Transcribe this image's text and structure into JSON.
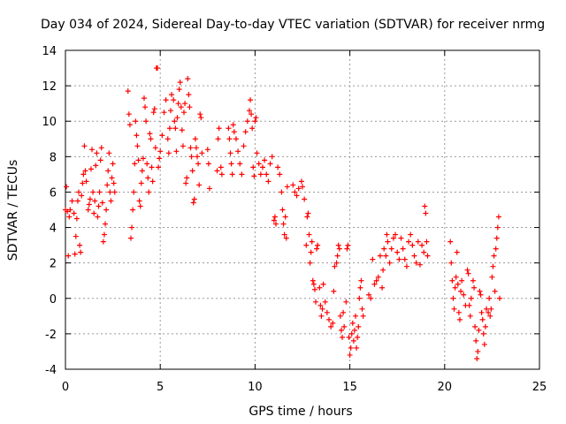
{
  "chart_data": {
    "type": "scatter",
    "title": "Day 034 of 2024, Sidereal Day-to-day VTEC variation (SDTVAR) for receiver nrmg",
    "xlabel": "GPS time / hours",
    "ylabel": "SDTVAR / TECUs",
    "xlim": [
      0,
      25
    ],
    "ylim": [
      -4,
      14
    ],
    "xticks": [
      0,
      5,
      10,
      15,
      20,
      25
    ],
    "yticks": [
      -4,
      -2,
      0,
      2,
      4,
      6,
      8,
      10,
      12,
      14
    ],
    "grid": true,
    "marker": "+",
    "color": "#ff0000",
    "series": [
      {
        "name": "SDTVAR",
        "points": [
          [
            0.0,
            5.0
          ],
          [
            0.05,
            6.3
          ],
          [
            0.1,
            4.9
          ],
          [
            0.15,
            2.4
          ],
          [
            0.2,
            4.6
          ],
          [
            0.25,
            5.0
          ],
          [
            0.35,
            5.5
          ],
          [
            0.45,
            4.8
          ],
          [
            0.5,
            2.5
          ],
          [
            0.55,
            3.5
          ],
          [
            0.6,
            4.5
          ],
          [
            0.65,
            5.5
          ],
          [
            0.7,
            6.0
          ],
          [
            0.75,
            3.0
          ],
          [
            0.8,
            2.6
          ],
          [
            0.85,
            5.8
          ],
          [
            0.9,
            6.5
          ],
          [
            0.95,
            7.0
          ],
          [
            1.0,
            8.6
          ],
          [
            1.05,
            7.2
          ],
          [
            1.1,
            6.6
          ],
          [
            1.2,
            5.0
          ],
          [
            1.25,
            5.3
          ],
          [
            1.3,
            5.6
          ],
          [
            1.35,
            7.3
          ],
          [
            1.4,
            8.4
          ],
          [
            1.45,
            6.0
          ],
          [
            1.5,
            4.8
          ],
          [
            1.55,
            5.5
          ],
          [
            1.6,
            7.5
          ],
          [
            1.65,
            8.2
          ],
          [
            1.7,
            4.6
          ],
          [
            1.75,
            5.2
          ],
          [
            1.8,
            6.0
          ],
          [
            1.85,
            7.8
          ],
          [
            1.9,
            8.5
          ],
          [
            1.95,
            5.4
          ],
          [
            2.0,
            3.2
          ],
          [
            2.05,
            3.6
          ],
          [
            2.1,
            4.2
          ],
          [
            2.15,
            5.0
          ],
          [
            2.2,
            6.4
          ],
          [
            2.25,
            7.2
          ],
          [
            2.3,
            8.2
          ],
          [
            2.35,
            6.0
          ],
          [
            2.4,
            5.5
          ],
          [
            2.45,
            6.8
          ],
          [
            2.5,
            7.6
          ],
          [
            2.55,
            6.5
          ],
          [
            2.6,
            6.0
          ],
          [
            3.3,
            11.7
          ],
          [
            3.35,
            10.4
          ],
          [
            3.4,
            9.8
          ],
          [
            3.45,
            3.4
          ],
          [
            3.5,
            4.0
          ],
          [
            3.55,
            5.0
          ],
          [
            3.6,
            6.0
          ],
          [
            3.65,
            7.6
          ],
          [
            3.7,
            10.0
          ],
          [
            3.75,
            9.2
          ],
          [
            3.8,
            8.6
          ],
          [
            3.85,
            7.8
          ],
          [
            3.9,
            5.5
          ],
          [
            3.95,
            5.2
          ],
          [
            4.0,
            6.5
          ],
          [
            4.05,
            7.2
          ],
          [
            4.1,
            7.9
          ],
          [
            4.15,
            11.3
          ],
          [
            4.2,
            10.8
          ],
          [
            4.25,
            10.0
          ],
          [
            4.3,
            7.6
          ],
          [
            4.35,
            6.8
          ],
          [
            4.4,
            6.0
          ],
          [
            4.45,
            9.3
          ],
          [
            4.5,
            9.0
          ],
          [
            4.55,
            7.4
          ],
          [
            4.6,
            6.6
          ],
          [
            4.65,
            10.5
          ],
          [
            4.7,
            10.7
          ],
          [
            4.75,
            8.5
          ],
          [
            4.8,
            13.0
          ],
          [
            4.85,
            13.0
          ],
          [
            4.9,
            7.4
          ],
          [
            4.95,
            7.9
          ],
          [
            5.0,
            8.3
          ],
          [
            5.1,
            9.2
          ],
          [
            5.2,
            10.5
          ],
          [
            5.3,
            11.2
          ],
          [
            5.4,
            9.0
          ],
          [
            5.45,
            8.2
          ],
          [
            5.5,
            9.6
          ],
          [
            5.55,
            10.6
          ],
          [
            5.6,
            11.5
          ],
          [
            5.7,
            11.2
          ],
          [
            5.75,
            10.0
          ],
          [
            5.8,
            9.6
          ],
          [
            5.85,
            8.3
          ],
          [
            5.9,
            10.2
          ],
          [
            5.95,
            11.0
          ],
          [
            6.0,
            11.8
          ],
          [
            6.05,
            12.2
          ],
          [
            6.1,
            10.8
          ],
          [
            6.15,
            9.5
          ],
          [
            6.2,
            8.6
          ],
          [
            6.25,
            10.5
          ],
          [
            6.3,
            11.0
          ],
          [
            6.35,
            6.5
          ],
          [
            6.4,
            6.8
          ],
          [
            6.45,
            12.4
          ],
          [
            6.5,
            11.5
          ],
          [
            6.55,
            10.8
          ],
          [
            6.6,
            8.5
          ],
          [
            6.65,
            8.0
          ],
          [
            6.7,
            7.2
          ],
          [
            6.75,
            5.4
          ],
          [
            6.8,
            5.6
          ],
          [
            6.85,
            9.0
          ],
          [
            6.9,
            8.5
          ],
          [
            6.95,
            8.0
          ],
          [
            7.0,
            7.6
          ],
          [
            7.05,
            6.4
          ],
          [
            7.1,
            10.4
          ],
          [
            7.15,
            10.2
          ],
          [
            7.2,
            8.2
          ],
          [
            7.5,
            8.4
          ],
          [
            7.55,
            7.6
          ],
          [
            7.6,
            6.2
          ],
          [
            8.0,
            7.2
          ],
          [
            8.05,
            9.0
          ],
          [
            8.1,
            9.6
          ],
          [
            8.2,
            7.4
          ],
          [
            8.25,
            7.0
          ],
          [
            8.6,
            9.6
          ],
          [
            8.65,
            9.0
          ],
          [
            8.7,
            8.2
          ],
          [
            8.75,
            7.6
          ],
          [
            8.8,
            7.0
          ],
          [
            8.85,
            9.8
          ],
          [
            8.9,
            9.4
          ],
          [
            9.0,
            9.0
          ],
          [
            9.1,
            8.3
          ],
          [
            9.2,
            7.6
          ],
          [
            9.3,
            7.0
          ],
          [
            9.4,
            8.6
          ],
          [
            9.5,
            9.4
          ],
          [
            9.6,
            10.0
          ],
          [
            9.7,
            10.6
          ],
          [
            9.75,
            11.2
          ],
          [
            9.8,
            10.4
          ],
          [
            9.85,
            9.6
          ],
          [
            9.9,
            7.4
          ],
          [
            9.95,
            6.9
          ],
          [
            10.0,
            10.0
          ],
          [
            10.05,
            10.2
          ],
          [
            10.1,
            8.2
          ],
          [
            10.2,
            7.6
          ],
          [
            10.3,
            7.0
          ],
          [
            10.4,
            7.4
          ],
          [
            10.5,
            7.8
          ],
          [
            10.6,
            7.0
          ],
          [
            10.7,
            6.6
          ],
          [
            10.8,
            7.6
          ],
          [
            10.9,
            8.0
          ],
          [
            11.0,
            4.4
          ],
          [
            11.05,
            4.6
          ],
          [
            11.1,
            4.2
          ],
          [
            11.2,
            7.4
          ],
          [
            11.3,
            7.0
          ],
          [
            11.4,
            6.0
          ],
          [
            11.45,
            5.0
          ],
          [
            11.5,
            4.2
          ],
          [
            11.55,
            3.6
          ],
          [
            11.6,
            4.6
          ],
          [
            11.65,
            3.4
          ],
          [
            11.7,
            6.3
          ],
          [
            12.0,
            6.4
          ],
          [
            12.1,
            6.0
          ],
          [
            12.2,
            5.8
          ],
          [
            12.3,
            6.2
          ],
          [
            12.45,
            6.6
          ],
          [
            12.5,
            6.3
          ],
          [
            12.6,
            5.6
          ],
          [
            12.7,
            3.0
          ],
          [
            12.75,
            4.6
          ],
          [
            12.8,
            4.8
          ],
          [
            12.85,
            3.6
          ],
          [
            12.9,
            2.0
          ],
          [
            12.95,
            2.6
          ],
          [
            13.0,
            3.2
          ],
          [
            13.05,
            1.0
          ],
          [
            13.1,
            0.8
          ],
          [
            13.15,
            0.5
          ],
          [
            13.2,
            -0.2
          ],
          [
            13.25,
            2.8
          ],
          [
            13.3,
            3.0
          ],
          [
            13.4,
            0.6
          ],
          [
            13.45,
            -0.4
          ],
          [
            13.5,
            -1.0
          ],
          [
            13.55,
            -0.6
          ],
          [
            13.6,
            0.8
          ],
          [
            13.7,
            -0.2
          ],
          [
            13.8,
            -0.8
          ],
          [
            13.9,
            -1.2
          ],
          [
            14.0,
            -1.6
          ],
          [
            14.1,
            -1.4
          ],
          [
            14.15,
            0.4
          ],
          [
            14.2,
            1.8
          ],
          [
            14.3,
            2.0
          ],
          [
            14.35,
            2.4
          ],
          [
            14.4,
            3.0
          ],
          [
            14.45,
            2.8
          ],
          [
            14.5,
            -1.0
          ],
          [
            14.55,
            -1.8
          ],
          [
            14.6,
            -2.2
          ],
          [
            14.65,
            -0.8
          ],
          [
            14.7,
            -1.6
          ],
          [
            14.8,
            -0.2
          ],
          [
            14.85,
            2.8
          ],
          [
            14.9,
            3.0
          ],
          [
            14.95,
            -2.2
          ],
          [
            15.0,
            -3.2
          ],
          [
            15.05,
            -2.8
          ],
          [
            15.1,
            -2.0
          ],
          [
            15.15,
            -1.4
          ],
          [
            15.2,
            -2.4
          ],
          [
            15.25,
            -1.8
          ],
          [
            15.3,
            -1.0
          ],
          [
            15.35,
            -2.8
          ],
          [
            15.4,
            -2.2
          ],
          [
            15.45,
            -1.6
          ],
          [
            15.5,
            0.0
          ],
          [
            15.55,
            0.6
          ],
          [
            15.6,
            1.0
          ],
          [
            15.65,
            -0.6
          ],
          [
            15.7,
            -1.0
          ],
          [
            16.0,
            0.2
          ],
          [
            16.1,
            0.0
          ],
          [
            16.2,
            2.2
          ],
          [
            16.3,
            0.8
          ],
          [
            16.4,
            1.0
          ],
          [
            16.5,
            1.2
          ],
          [
            16.6,
            2.4
          ],
          [
            16.7,
            0.6
          ],
          [
            16.75,
            1.6
          ],
          [
            16.8,
            2.8
          ],
          [
            16.9,
            2.4
          ],
          [
            16.95,
            3.6
          ],
          [
            17.0,
            3.2
          ],
          [
            17.1,
            2.0
          ],
          [
            17.2,
            2.8
          ],
          [
            17.3,
            3.4
          ],
          [
            17.4,
            3.6
          ],
          [
            17.5,
            2.6
          ],
          [
            17.6,
            2.2
          ],
          [
            17.7,
            3.4
          ],
          [
            17.8,
            2.8
          ],
          [
            17.9,
            2.2
          ],
          [
            18.0,
            1.8
          ],
          [
            18.1,
            3.2
          ],
          [
            18.2,
            3.6
          ],
          [
            18.3,
            3.0
          ],
          [
            18.4,
            2.4
          ],
          [
            18.5,
            2.0
          ],
          [
            18.6,
            3.2
          ],
          [
            18.7,
            1.9
          ],
          [
            18.8,
            3.0
          ],
          [
            18.9,
            2.6
          ],
          [
            18.95,
            5.2
          ],
          [
            19.0,
            4.8
          ],
          [
            19.05,
            3.2
          ],
          [
            19.1,
            2.4
          ],
          [
            20.3,
            3.2
          ],
          [
            20.35,
            2.0
          ],
          [
            20.4,
            1.0
          ],
          [
            20.45,
            0.0
          ],
          [
            20.5,
            -0.6
          ],
          [
            20.55,
            0.6
          ],
          [
            20.6,
            1.2
          ],
          [
            20.65,
            2.6
          ],
          [
            20.7,
            0.8
          ],
          [
            20.75,
            -0.8
          ],
          [
            20.8,
            -1.2
          ],
          [
            20.85,
            0.4
          ],
          [
            20.9,
            1.0
          ],
          [
            21.0,
            0.2
          ],
          [
            21.1,
            -0.4
          ],
          [
            21.2,
            1.6
          ],
          [
            21.25,
            1.4
          ],
          [
            21.3,
            -0.4
          ],
          [
            21.35,
            -1.0
          ],
          [
            21.4,
            0.0
          ],
          [
            21.5,
            1.0
          ],
          [
            21.55,
            0.6
          ],
          [
            21.6,
            -1.6
          ],
          [
            21.65,
            -2.4
          ],
          [
            21.7,
            -3.4
          ],
          [
            21.75,
            -3.0
          ],
          [
            21.8,
            -1.8
          ],
          [
            21.85,
            0.4
          ],
          [
            21.9,
            0.2
          ],
          [
            21.95,
            -0.8
          ],
          [
            22.0,
            -1.2
          ],
          [
            22.05,
            -2.0
          ],
          [
            22.1,
            -2.6
          ],
          [
            22.15,
            -1.6
          ],
          [
            22.2,
            -0.6
          ],
          [
            22.3,
            -0.8
          ],
          [
            22.35,
            0.0
          ],
          [
            22.4,
            -1.0
          ],
          [
            22.45,
            -0.6
          ],
          [
            22.5,
            1.2
          ],
          [
            22.55,
            1.8
          ],
          [
            22.6,
            2.4
          ],
          [
            22.65,
            0.4
          ],
          [
            22.7,
            2.8
          ],
          [
            22.75,
            3.4
          ],
          [
            22.8,
            4.0
          ],
          [
            22.85,
            4.6
          ],
          [
            22.9,
            0.0
          ]
        ]
      }
    ]
  }
}
